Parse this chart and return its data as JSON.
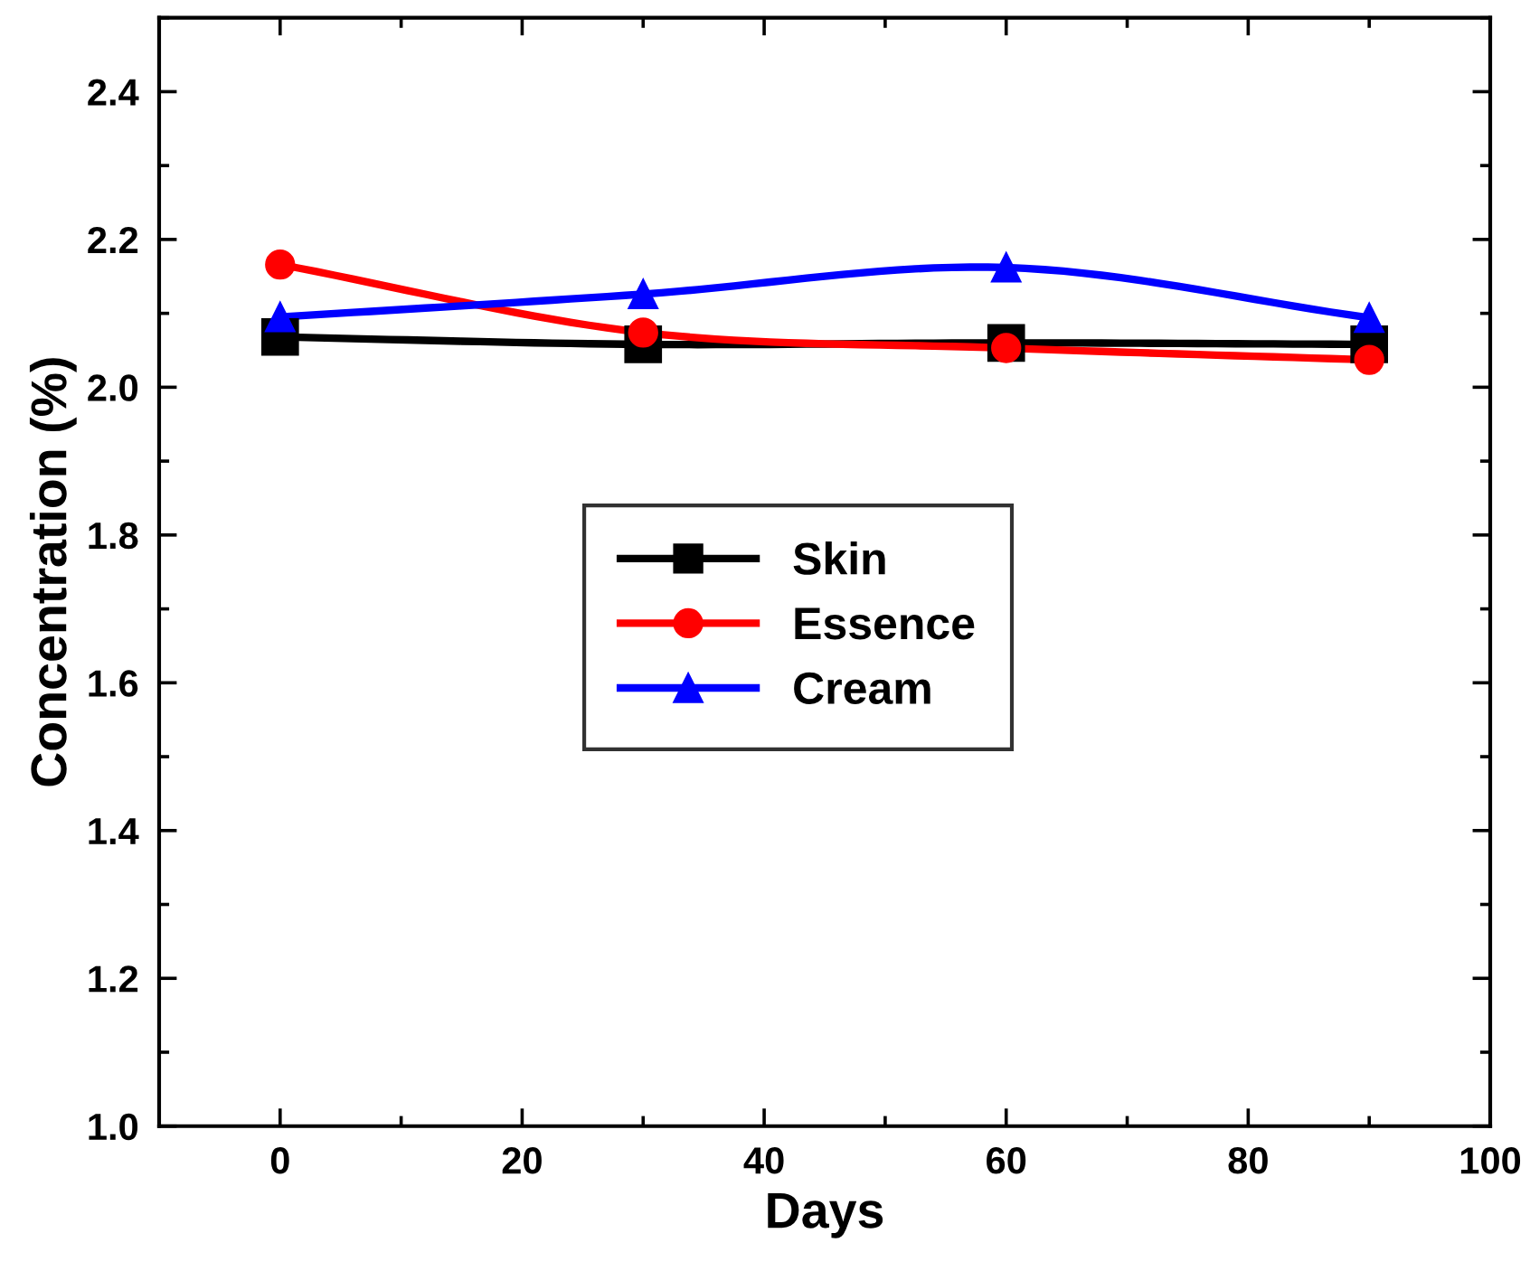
{
  "chart_data": {
    "type": "line",
    "xlabel": "Days",
    "ylabel": "Concentration (%)",
    "x": [
      0,
      30,
      60,
      90
    ],
    "series": [
      {
        "name": "Skin",
        "color": "#000000",
        "marker": "square",
        "values": [
          2.068,
          2.058,
          2.06,
          2.058
        ]
      },
      {
        "name": "Essence",
        "color": "#ff0000",
        "marker": "circle",
        "values": [
          2.166,
          2.074,
          2.053,
          2.037
        ]
      },
      {
        "name": "Cream",
        "color": "#0000ff",
        "marker": "triangle",
        "values": [
          2.095,
          2.126,
          2.162,
          2.094
        ]
      }
    ],
    "xlim": [
      -10,
      100
    ],
    "xticks": [
      0,
      20,
      40,
      60,
      80,
      100
    ],
    "ylim": [
      1.0,
      2.5
    ],
    "yticks": [
      {
        "value": 1,
        "label": "1.0"
      },
      1.2,
      1.4,
      1.6,
      1.8,
      {
        "value": 2,
        "label": "2.0"
      },
      2.2,
      2.4
    ],
    "grid": false,
    "legend": "center",
    "line_style": "solid"
  }
}
